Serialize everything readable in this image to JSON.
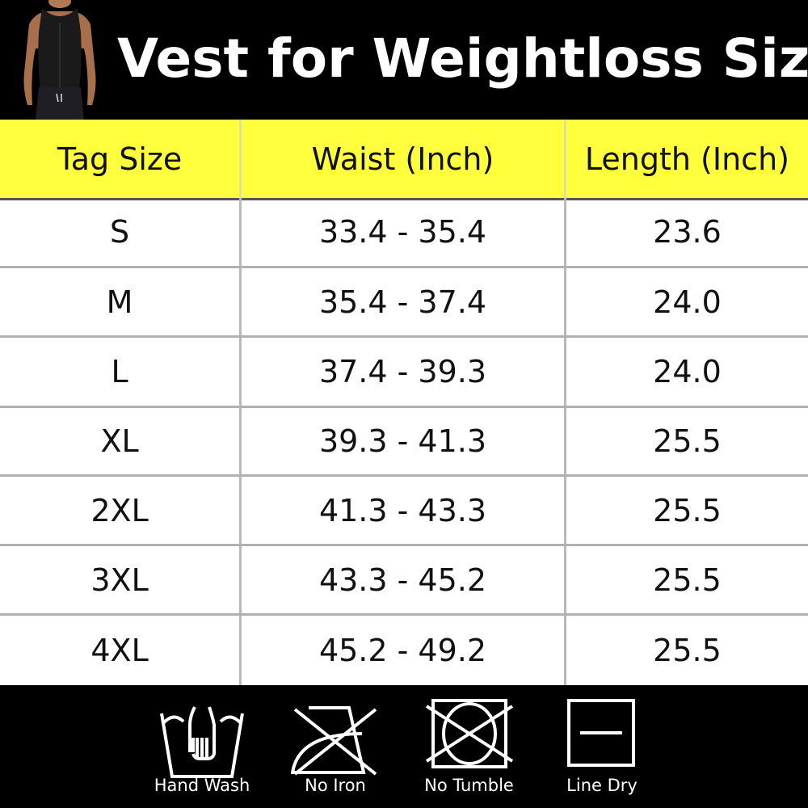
{
  "header": {
    "title": "Vest for Weightloss Size"
  },
  "table": {
    "columns": [
      "Tag Size",
      "Waist (Inch)",
      "Length (Inch)"
    ],
    "rows": [
      [
        "S",
        "33.4 - 35.4",
        "23.6"
      ],
      [
        "M",
        "35.4 - 37.4",
        "24.0"
      ],
      [
        "L",
        "37.4 - 39.3",
        "24.0"
      ],
      [
        "XL",
        "39.3 - 41.3",
        "25.5"
      ],
      [
        "2XL",
        "41.3 - 43.3",
        "25.5"
      ],
      [
        "3XL",
        "43.3 - 45.2",
        "25.5"
      ],
      [
        "4XL",
        "45.2 - 49.2",
        "25.5"
      ]
    ]
  },
  "care": [
    {
      "label": "Hand Wash",
      "icon": "hand-wash-icon"
    },
    {
      "label": "No Iron",
      "icon": "no-iron-icon"
    },
    {
      "label": "No Tumble",
      "icon": "no-tumble-dry-icon"
    },
    {
      "label": "Line Dry",
      "icon": "line-dry-icon"
    }
  ],
  "colors": {
    "header_bg": "#000000",
    "column_header_bg": "#ffff3d",
    "row_bg": "#ffffff"
  }
}
